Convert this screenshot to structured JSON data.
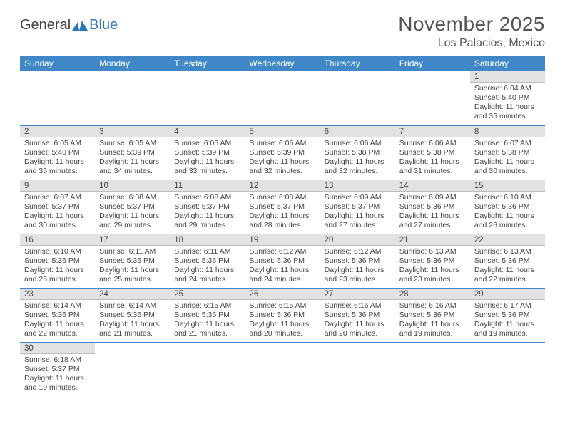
{
  "brand": {
    "word1": "General",
    "word2": "Blue"
  },
  "header": {
    "title": "November 2025",
    "location": "Los Palacios, Mexico"
  },
  "colors": {
    "header_bg": "#3f87c6",
    "header_text": "#ffffff",
    "daynum_bg": "#e2e2e2",
    "row_border": "#3f87c6",
    "brand_blue": "#2f78b8",
    "text": "#444444",
    "page_bg": "#ffffff"
  },
  "daynames": [
    "Sunday",
    "Monday",
    "Tuesday",
    "Wednesday",
    "Thursday",
    "Friday",
    "Saturday"
  ],
  "weeks": [
    [
      null,
      null,
      null,
      null,
      null,
      null,
      {
        "n": "1",
        "sr": "Sunrise: 6:04 AM",
        "ss": "Sunset: 5:40 PM",
        "d1": "Daylight: 11 hours",
        "d2": "and 35 minutes."
      }
    ],
    [
      {
        "n": "2",
        "sr": "Sunrise: 6:05 AM",
        "ss": "Sunset: 5:40 PM",
        "d1": "Daylight: 11 hours",
        "d2": "and 35 minutes."
      },
      {
        "n": "3",
        "sr": "Sunrise: 6:05 AM",
        "ss": "Sunset: 5:39 PM",
        "d1": "Daylight: 11 hours",
        "d2": "and 34 minutes."
      },
      {
        "n": "4",
        "sr": "Sunrise: 6:05 AM",
        "ss": "Sunset: 5:39 PM",
        "d1": "Daylight: 11 hours",
        "d2": "and 33 minutes."
      },
      {
        "n": "5",
        "sr": "Sunrise: 6:06 AM",
        "ss": "Sunset: 5:39 PM",
        "d1": "Daylight: 11 hours",
        "d2": "and 32 minutes."
      },
      {
        "n": "6",
        "sr": "Sunrise: 6:06 AM",
        "ss": "Sunset: 5:38 PM",
        "d1": "Daylight: 11 hours",
        "d2": "and 32 minutes."
      },
      {
        "n": "7",
        "sr": "Sunrise: 6:06 AM",
        "ss": "Sunset: 5:38 PM",
        "d1": "Daylight: 11 hours",
        "d2": "and 31 minutes."
      },
      {
        "n": "8",
        "sr": "Sunrise: 6:07 AM",
        "ss": "Sunset: 5:38 PM",
        "d1": "Daylight: 11 hours",
        "d2": "and 30 minutes."
      }
    ],
    [
      {
        "n": "9",
        "sr": "Sunrise: 6:07 AM",
        "ss": "Sunset: 5:37 PM",
        "d1": "Daylight: 11 hours",
        "d2": "and 30 minutes."
      },
      {
        "n": "10",
        "sr": "Sunrise: 6:08 AM",
        "ss": "Sunset: 5:37 PM",
        "d1": "Daylight: 11 hours",
        "d2": "and 29 minutes."
      },
      {
        "n": "11",
        "sr": "Sunrise: 6:08 AM",
        "ss": "Sunset: 5:37 PM",
        "d1": "Daylight: 11 hours",
        "d2": "and 29 minutes."
      },
      {
        "n": "12",
        "sr": "Sunrise: 6:08 AM",
        "ss": "Sunset: 5:37 PM",
        "d1": "Daylight: 11 hours",
        "d2": "and 28 minutes."
      },
      {
        "n": "13",
        "sr": "Sunrise: 6:09 AM",
        "ss": "Sunset: 5:37 PM",
        "d1": "Daylight: 11 hours",
        "d2": "and 27 minutes."
      },
      {
        "n": "14",
        "sr": "Sunrise: 6:09 AM",
        "ss": "Sunset: 5:36 PM",
        "d1": "Daylight: 11 hours",
        "d2": "and 27 minutes."
      },
      {
        "n": "15",
        "sr": "Sunrise: 6:10 AM",
        "ss": "Sunset: 5:36 PM",
        "d1": "Daylight: 11 hours",
        "d2": "and 26 minutes."
      }
    ],
    [
      {
        "n": "16",
        "sr": "Sunrise: 6:10 AM",
        "ss": "Sunset: 5:36 PM",
        "d1": "Daylight: 11 hours",
        "d2": "and 25 minutes."
      },
      {
        "n": "17",
        "sr": "Sunrise: 6:11 AM",
        "ss": "Sunset: 5:36 PM",
        "d1": "Daylight: 11 hours",
        "d2": "and 25 minutes."
      },
      {
        "n": "18",
        "sr": "Sunrise: 6:11 AM",
        "ss": "Sunset: 5:36 PM",
        "d1": "Daylight: 11 hours",
        "d2": "and 24 minutes."
      },
      {
        "n": "19",
        "sr": "Sunrise: 6:12 AM",
        "ss": "Sunset: 5:36 PM",
        "d1": "Daylight: 11 hours",
        "d2": "and 24 minutes."
      },
      {
        "n": "20",
        "sr": "Sunrise: 6:12 AM",
        "ss": "Sunset: 5:36 PM",
        "d1": "Daylight: 11 hours",
        "d2": "and 23 minutes."
      },
      {
        "n": "21",
        "sr": "Sunrise: 6:13 AM",
        "ss": "Sunset: 5:36 PM",
        "d1": "Daylight: 11 hours",
        "d2": "and 23 minutes."
      },
      {
        "n": "22",
        "sr": "Sunrise: 6:13 AM",
        "ss": "Sunset: 5:36 PM",
        "d1": "Daylight: 11 hours",
        "d2": "and 22 minutes."
      }
    ],
    [
      {
        "n": "23",
        "sr": "Sunrise: 6:14 AM",
        "ss": "Sunset: 5:36 PM",
        "d1": "Daylight: 11 hours",
        "d2": "and 22 minutes."
      },
      {
        "n": "24",
        "sr": "Sunrise: 6:14 AM",
        "ss": "Sunset: 5:36 PM",
        "d1": "Daylight: 11 hours",
        "d2": "and 21 minutes."
      },
      {
        "n": "25",
        "sr": "Sunrise: 6:15 AM",
        "ss": "Sunset: 5:36 PM",
        "d1": "Daylight: 11 hours",
        "d2": "and 21 minutes."
      },
      {
        "n": "26",
        "sr": "Sunrise: 6:15 AM",
        "ss": "Sunset: 5:36 PM",
        "d1": "Daylight: 11 hours",
        "d2": "and 20 minutes."
      },
      {
        "n": "27",
        "sr": "Sunrise: 6:16 AM",
        "ss": "Sunset: 5:36 PM",
        "d1": "Daylight: 11 hours",
        "d2": "and 20 minutes."
      },
      {
        "n": "28",
        "sr": "Sunrise: 6:16 AM",
        "ss": "Sunset: 5:36 PM",
        "d1": "Daylight: 11 hours",
        "d2": "and 19 minutes."
      },
      {
        "n": "29",
        "sr": "Sunrise: 6:17 AM",
        "ss": "Sunset: 5:36 PM",
        "d1": "Daylight: 11 hours",
        "d2": "and 19 minutes."
      }
    ],
    [
      {
        "n": "30",
        "sr": "Sunrise: 6:18 AM",
        "ss": "Sunset: 5:37 PM",
        "d1": "Daylight: 11 hours",
        "d2": "and 19 minutes."
      },
      null,
      null,
      null,
      null,
      null,
      null
    ]
  ]
}
